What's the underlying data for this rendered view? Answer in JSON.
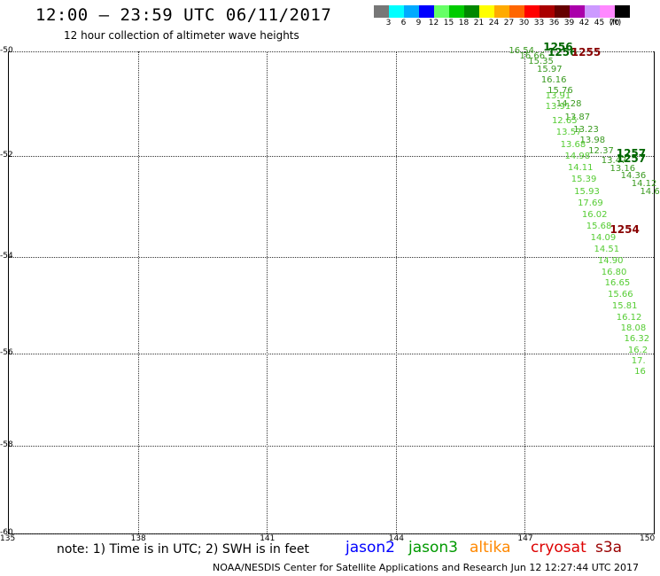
{
  "header": {
    "title": "12:00 – 23:59 UTC 06/11/2017",
    "subtitle": "12 hour collection of altimeter wave heights"
  },
  "colorbar": {
    "colors": [
      "#777777",
      "#00ffff",
      "#00aaff",
      "#0000ff",
      "#66ff66",
      "#00cc00",
      "#008800",
      "#ffff00",
      "#ffaa00",
      "#ff6600",
      "#ff0000",
      "#aa0000",
      "#660000",
      "#aa00aa",
      "#cc99ff",
      "#ff88ff",
      "#000000"
    ],
    "labels": [
      "3",
      "6",
      "9",
      "12",
      "15",
      "18",
      "21",
      "24",
      "27",
      "30",
      "33",
      "36",
      "39",
      "42",
      "45",
      "70",
      "(ft)"
    ]
  },
  "map": {
    "y_ticks": [
      "-50",
      "-52",
      "-54",
      "-56",
      "-58",
      "-60"
    ],
    "x_ticks": [
      "135",
      "138",
      "141",
      "144",
      "147",
      "150"
    ]
  },
  "observations": {
    "upper_track_color": "#3a9a20",
    "lower_track_color": "#55cc33",
    "lower_track": [
      {
        "lon": 147.5,
        "lat": -50.85,
        "value": "13.91"
      },
      {
        "lon": 147.5,
        "lat": -51.05,
        "value": "13.91"
      },
      {
        "lon": 147.65,
        "lat": -51.32,
        "value": "12.65"
      },
      {
        "lon": 147.75,
        "lat": -51.55,
        "value": "13.57"
      },
      {
        "lon": 147.85,
        "lat": -51.78,
        "value": "13.68"
      },
      {
        "lon": 147.95,
        "lat": -52.01,
        "value": "14.98"
      },
      {
        "lon": 148.02,
        "lat": -52.24,
        "value": "14.11"
      },
      {
        "lon": 148.1,
        "lat": -52.47,
        "value": "15.39"
      },
      {
        "lon": 148.17,
        "lat": -52.7,
        "value": "15.93"
      },
      {
        "lon": 148.25,
        "lat": -52.93,
        "value": "17.69"
      },
      {
        "lon": 148.35,
        "lat": -53.16,
        "value": "16.02"
      },
      {
        "lon": 148.45,
        "lat": -53.39,
        "value": "15.68"
      },
      {
        "lon": 148.55,
        "lat": -53.62,
        "value": "14.09"
      },
      {
        "lon": 148.63,
        "lat": -53.86,
        "value": "14.51"
      },
      {
        "lon": 148.72,
        "lat": -54.09,
        "value": "14.90"
      },
      {
        "lon": 148.8,
        "lat": -54.32,
        "value": "16.80"
      },
      {
        "lon": 148.88,
        "lat": -54.55,
        "value": "16.65"
      },
      {
        "lon": 148.95,
        "lat": -54.78,
        "value": "15.66"
      },
      {
        "lon": 149.05,
        "lat": -55.01,
        "value": "15.81"
      },
      {
        "lon": 149.15,
        "lat": -55.25,
        "value": "16.12"
      },
      {
        "lon": 149.25,
        "lat": -55.48,
        "value": "18.08"
      },
      {
        "lon": 149.33,
        "lat": -55.71,
        "value": "16.32"
      },
      {
        "lon": 149.42,
        "lat": -55.94,
        "value": "16.2"
      },
      {
        "lon": 149.5,
        "lat": -56.17,
        "value": "17."
      },
      {
        "lon": 149.57,
        "lat": -56.4,
        "value": "16"
      }
    ],
    "upper_track": [
      {
        "lon": 146.65,
        "lat": -50.0,
        "value": "16.54"
      },
      {
        "lon": 146.9,
        "lat": -50.1,
        "value": "16.66"
      },
      {
        "lon": 147.1,
        "lat": -50.2,
        "value": "15.35"
      },
      {
        "lon": 147.3,
        "lat": -50.35,
        "value": "15.97"
      },
      {
        "lon": 147.4,
        "lat": -50.55,
        "value": "16.16"
      },
      {
        "lon": 147.55,
        "lat": -50.75,
        "value": "15.76"
      },
      {
        "lon": 147.75,
        "lat": -51.0,
        "value": "14.28"
      },
      {
        "lon": 147.95,
        "lat": -51.25,
        "value": "13.87"
      },
      {
        "lon": 148.15,
        "lat": -51.5,
        "value": "13.23"
      },
      {
        "lon": 148.3,
        "lat": -51.7,
        "value": "13.98"
      },
      {
        "lon": 148.5,
        "lat": -51.9,
        "value": "12.37"
      },
      {
        "lon": 148.8,
        "lat": -52.1,
        "value": "13.47"
      },
      {
        "lon": 149.0,
        "lat": -52.25,
        "value": "13.16"
      },
      {
        "lon": 149.25,
        "lat": -52.4,
        "value": "14.36"
      },
      {
        "lon": 149.5,
        "lat": -52.55,
        "value": "14.12"
      },
      {
        "lon": 149.7,
        "lat": -52.7,
        "value": "14.6"
      }
    ],
    "time_labels": [
      {
        "lon": 147.45,
        "lat": -49.92,
        "value": "1256",
        "color": "#006600"
      },
      {
        "lon": 147.55,
        "lat": -50.02,
        "value": "1256",
        "color": "#006600"
      },
      {
        "lon": 148.1,
        "lat": -50.02,
        "value": "1255",
        "color": "#880000"
      },
      {
        "lon": 149.15,
        "lat": -51.95,
        "value": "1257",
        "color": "#006600"
      },
      {
        "lon": 149.15,
        "lat": -52.05,
        "value": "1257",
        "color": "#006600"
      },
      {
        "lon": 149.0,
        "lat": -53.45,
        "value": "1254",
        "color": "#880000"
      }
    ]
  },
  "footer": {
    "note": "note: 1) Time is in UTC; 2) SWH is in feet",
    "legend": [
      {
        "label": "jason2",
        "color": "#0000ff"
      },
      {
        "label": "jason3",
        "color": "#009900"
      },
      {
        "label": "altika",
        "color": "#ff8800"
      },
      {
        "label": "cryosat",
        "color": "#dd0000"
      },
      {
        "label": "s3a",
        "color": "#990000"
      }
    ],
    "credit": "NOAA/NESDIS Center for Satellite Applications and Research     Jun 12 12:27:44 UTC 2017"
  }
}
